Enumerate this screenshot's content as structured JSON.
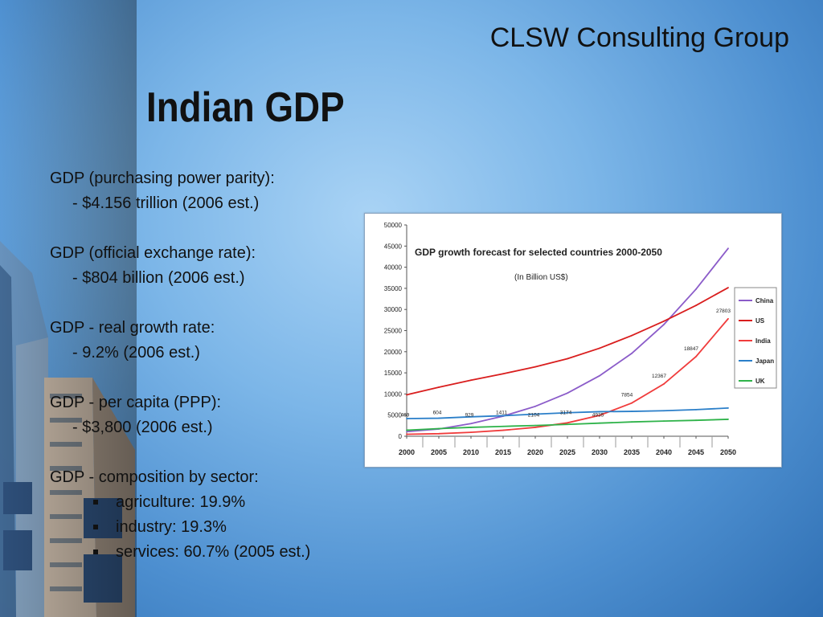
{
  "slide": {
    "brand": "CLSW Consulting Group",
    "title": "Indian GDP",
    "sections": [
      {
        "heading": "GDP (purchasing power parity):",
        "value": "- $4.156 trillion (2006 est.)"
      },
      {
        "heading": "GDP (official exchange rate):",
        "value": "- $804 billion (2006 est.)"
      },
      {
        "heading": "GDP - real growth rate:",
        "value": "- 9.2% (2006 est.)"
      },
      {
        "heading": "GDP - per capita (PPP):",
        "value": "- $3,800 (2006 est.)"
      }
    ],
    "composition": {
      "heading": "GDP - composition by sector:",
      "items": [
        "agriculture: 19.9%",
        "industry: 19.3%",
        "services: 60.7% (2005 est.)"
      ]
    }
  },
  "chart_data": {
    "type": "line",
    "title": "GDP growth forecast for selected countries 2000-2050",
    "subtitle": "(In Billion US$)",
    "x": [
      2000,
      2005,
      2010,
      2015,
      2020,
      2025,
      2030,
      2035,
      2040,
      2045,
      2050
    ],
    "ylim": [
      0,
      50000
    ],
    "yticks": [
      0,
      5000,
      10000,
      15000,
      20000,
      25000,
      30000,
      35000,
      40000,
      45000,
      50000
    ],
    "legend_position": "right",
    "series": [
      {
        "name": "China",
        "color": "#8b5cc9",
        "values": [
          1100,
          1720,
          2998,
          4754,
          7070,
          10213,
          14312,
          19605,
          26439,
          34799,
          44453
        ]
      },
      {
        "name": "US",
        "color": "#d91e1e",
        "values": [
          9800,
          11590,
          13270,
          14786,
          16415,
          18340,
          20833,
          23828,
          27229,
          30956,
          35165
        ]
      },
      {
        "name": "India",
        "color": "#f03c3c",
        "values": [
          469,
          604,
          929,
          1411,
          2104,
          3174,
          4935,
          7854,
          12367,
          18847,
          27803
        ]
      },
      {
        "name": "Japan",
        "color": "#2b7fc9",
        "values": [
          4175,
          4267,
          4601,
          4858,
          5221,
          5567,
          5810,
          5882,
          6039,
          6297,
          6673
        ]
      },
      {
        "name": "UK",
        "color": "#2fb34a",
        "values": [
          1437,
          1811,
          2099,
          2336,
          2549,
          2801,
          3101,
          3386,
          3585,
          3767,
          4007
        ]
      }
    ],
    "annotations": {
      "series": "India",
      "labels": [
        "469",
        "604",
        "929",
        "1411",
        "2104",
        "3174",
        "4935",
        "7854",
        "12367",
        "18847",
        "27803"
      ]
    }
  }
}
